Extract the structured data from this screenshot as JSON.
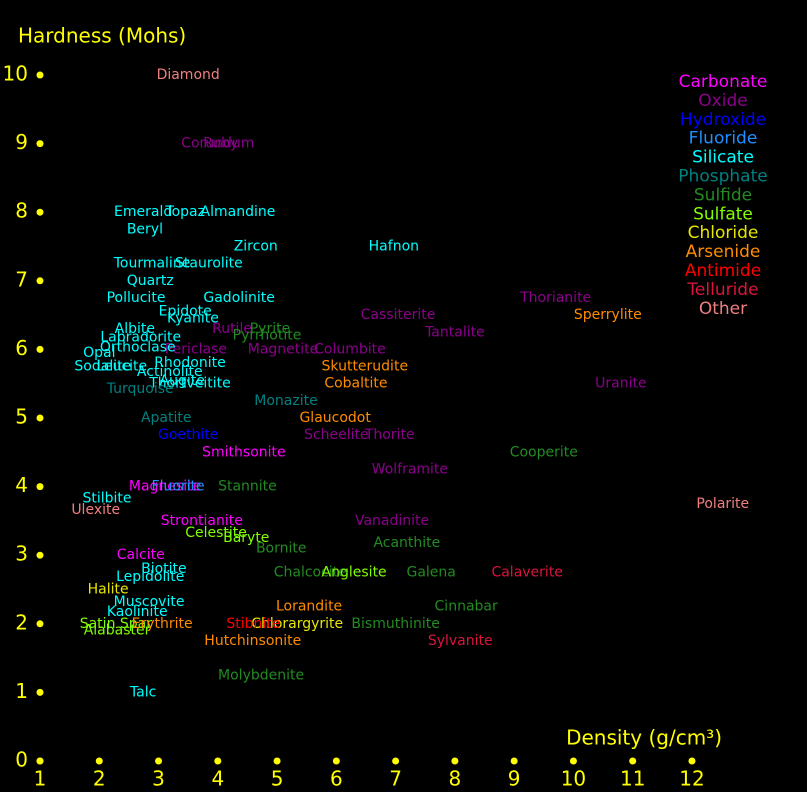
{
  "chart_data": {
    "type": "scatter",
    "y_label": "Hardness (Mohs)",
    "x_label": "Density (g/cm³)",
    "xlim": [
      1,
      13
    ],
    "ylim": [
      0,
      10
    ],
    "xticks": [
      1,
      2,
      3,
      4,
      5,
      6,
      7,
      8,
      9,
      10,
      11,
      12
    ],
    "yticks": [
      0,
      1,
      2,
      3,
      4,
      5,
      6,
      7,
      8,
      9,
      10
    ],
    "tick_color": "#ffff00",
    "series": [
      {
        "name": "Carbonate",
        "color": "#ff00ff",
        "labels": [
          "Smithsonite",
          "Magnesite",
          "Strontianite",
          "Calcite"
        ],
        "x": [
          4.44,
          3.11,
          3.73,
          2.7
        ],
        "y": [
          4.5,
          4.0,
          3.5,
          3.0
        ]
      },
      {
        "name": "Oxide",
        "color": "#8b008b",
        "labels": [
          "Corundum",
          "Ruby",
          "Thorianite",
          "Cassiterite",
          "Tantalite",
          "Rutile",
          "Periclase",
          "Magnetite",
          "Columbite",
          "Uranite",
          "Scheelite",
          "Thorite",
          "Wolframite",
          "Vanadinite"
        ],
        "x": [
          4.0,
          4.05,
          9.7,
          7.04,
          8.0,
          4.24,
          3.63,
          5.1,
          6.23,
          10.8,
          6.0,
          6.9,
          7.24,
          6.94
        ],
        "y": [
          9,
          9,
          6.75,
          6.5,
          6.25,
          6.3,
          6.0,
          6.0,
          6.0,
          5.5,
          4.75,
          4.75,
          4.25,
          3.5
        ]
      },
      {
        "name": "Hydroxide",
        "color": "#0000ff",
        "labels": [
          "Goethite"
        ],
        "x": [
          3.5
        ],
        "y": [
          4.75
        ]
      },
      {
        "name": "Fluoride",
        "color": "#1e90ff",
        "labels": [
          "Fluorite"
        ],
        "x": [
          3.33
        ],
        "y": [
          4.0
        ]
      },
      {
        "name": "Silicate",
        "color": "#00ffff",
        "labels": [
          "Emerald",
          "Topaz",
          "Almandine",
          "Beryl",
          "Zircon",
          "Hafnon",
          "Tourmaline",
          "Staurolite",
          "Quartz",
          "Pollucite",
          "Gadolinite",
          "Epidote",
          "Kyanite",
          "Albite",
          "Labradorite",
          "Orthoclase",
          "Opal",
          "Sodalite",
          "Leucite",
          "Rhodonite",
          "Actinolite",
          "Augite",
          "Thortveitite",
          "Stilbite",
          "Biotite",
          "Lepidolite",
          "Muscovite",
          "Kaolinite",
          "Talc"
        ],
        "x": [
          2.74,
          3.45,
          4.34,
          2.77,
          4.64,
          6.97,
          2.89,
          3.85,
          2.86,
          2.62,
          4.36,
          3.45,
          3.58,
          2.6,
          2.7,
          2.65,
          2.0,
          2.06,
          2.38,
          3.53,
          3.19,
          3.4,
          3.53,
          2.13,
          3.09,
          2.86,
          2.84,
          2.64,
          2.74
        ],
        "y": [
          8,
          8,
          8,
          7.75,
          7.5,
          7.5,
          7.25,
          7.25,
          7,
          6.75,
          6.75,
          6.55,
          6.45,
          6.3,
          6.17,
          6.03,
          5.95,
          5.75,
          5.75,
          5.8,
          5.67,
          5.54,
          5.5,
          3.83,
          2.8,
          2.68,
          2.32,
          2.17,
          1.0
        ]
      },
      {
        "name": "Phosphate",
        "color": "#008080",
        "labels": [
          "Apatite",
          "Monazite",
          "Turquoise"
        ],
        "x": [
          3.13,
          5.15,
          2.69
        ],
        "y": [
          5.0,
          5.25,
          5.42
        ]
      },
      {
        "name": "Sulfide",
        "color": "#228b22",
        "labels": [
          "Pyrite",
          "Pyrrhotite",
          "Cooperite",
          "Stannite",
          "Bornite",
          "Acanthite",
          "Chalcocite",
          "Galena",
          "Cinnabar",
          "Bismuthinite",
          "Molybdenite"
        ],
        "x": [
          4.88,
          4.83,
          9.5,
          4.5,
          5.07,
          7.19,
          5.56,
          7.6,
          8.19,
          7.0,
          4.73
        ],
        "y": [
          6.3,
          6.2,
          4.5,
          4.0,
          3.1,
          3.18,
          2.75,
          2.75,
          2.25,
          2.0,
          1.25
        ]
      },
      {
        "name": "Sulfate",
        "color": "#7fff00",
        "labels": [
          "Anglesite",
          "Celestite",
          "Baryte",
          "Satin Spar",
          "Alabaster"
        ],
        "x": [
          6.3,
          3.97,
          4.48,
          2.28,
          2.3
        ],
        "y": [
          2.75,
          3.32,
          3.25,
          2.0,
          1.9
        ]
      },
      {
        "name": "Chloride",
        "color": "#e6e600",
        "labels": [
          "Halite",
          "Chlorargyrite"
        ],
        "x": [
          2.15,
          5.34
        ],
        "y": [
          2.5,
          2.0
        ]
      },
      {
        "name": "Arsenide",
        "color": "#ff8c00",
        "labels": [
          "Skutterudite",
          "Cobaltite",
          "Glaucodot",
          "Sperrylite",
          "Lorandite",
          "Erythrite",
          "Hutchinsonite"
        ],
        "x": [
          6.48,
          6.33,
          5.98,
          10.58,
          5.54,
          3.06,
          4.59
        ],
        "y": [
          5.75,
          5.5,
          5.0,
          6.5,
          2.25,
          2.0,
          1.75
        ]
      },
      {
        "name": "Antimide",
        "color": "#ff0000",
        "labels": [
          "Stibnite"
        ],
        "x": [
          4.6
        ],
        "y": [
          2.0
        ]
      },
      {
        "name": "Telluride",
        "color": "#dc143c",
        "labels": [
          "Calaverite",
          "Sylvanite"
        ],
        "x": [
          9.22,
          8.09
        ],
        "y": [
          2.75,
          1.75
        ]
      },
      {
        "name": "Other",
        "color": "#f08080",
        "labels": [
          "Diamond",
          "Polarite",
          "Ulexite"
        ],
        "x": [
          3.5,
          12.52,
          1.94
        ],
        "y": [
          10,
          3.75,
          3.66
        ]
      }
    ]
  }
}
